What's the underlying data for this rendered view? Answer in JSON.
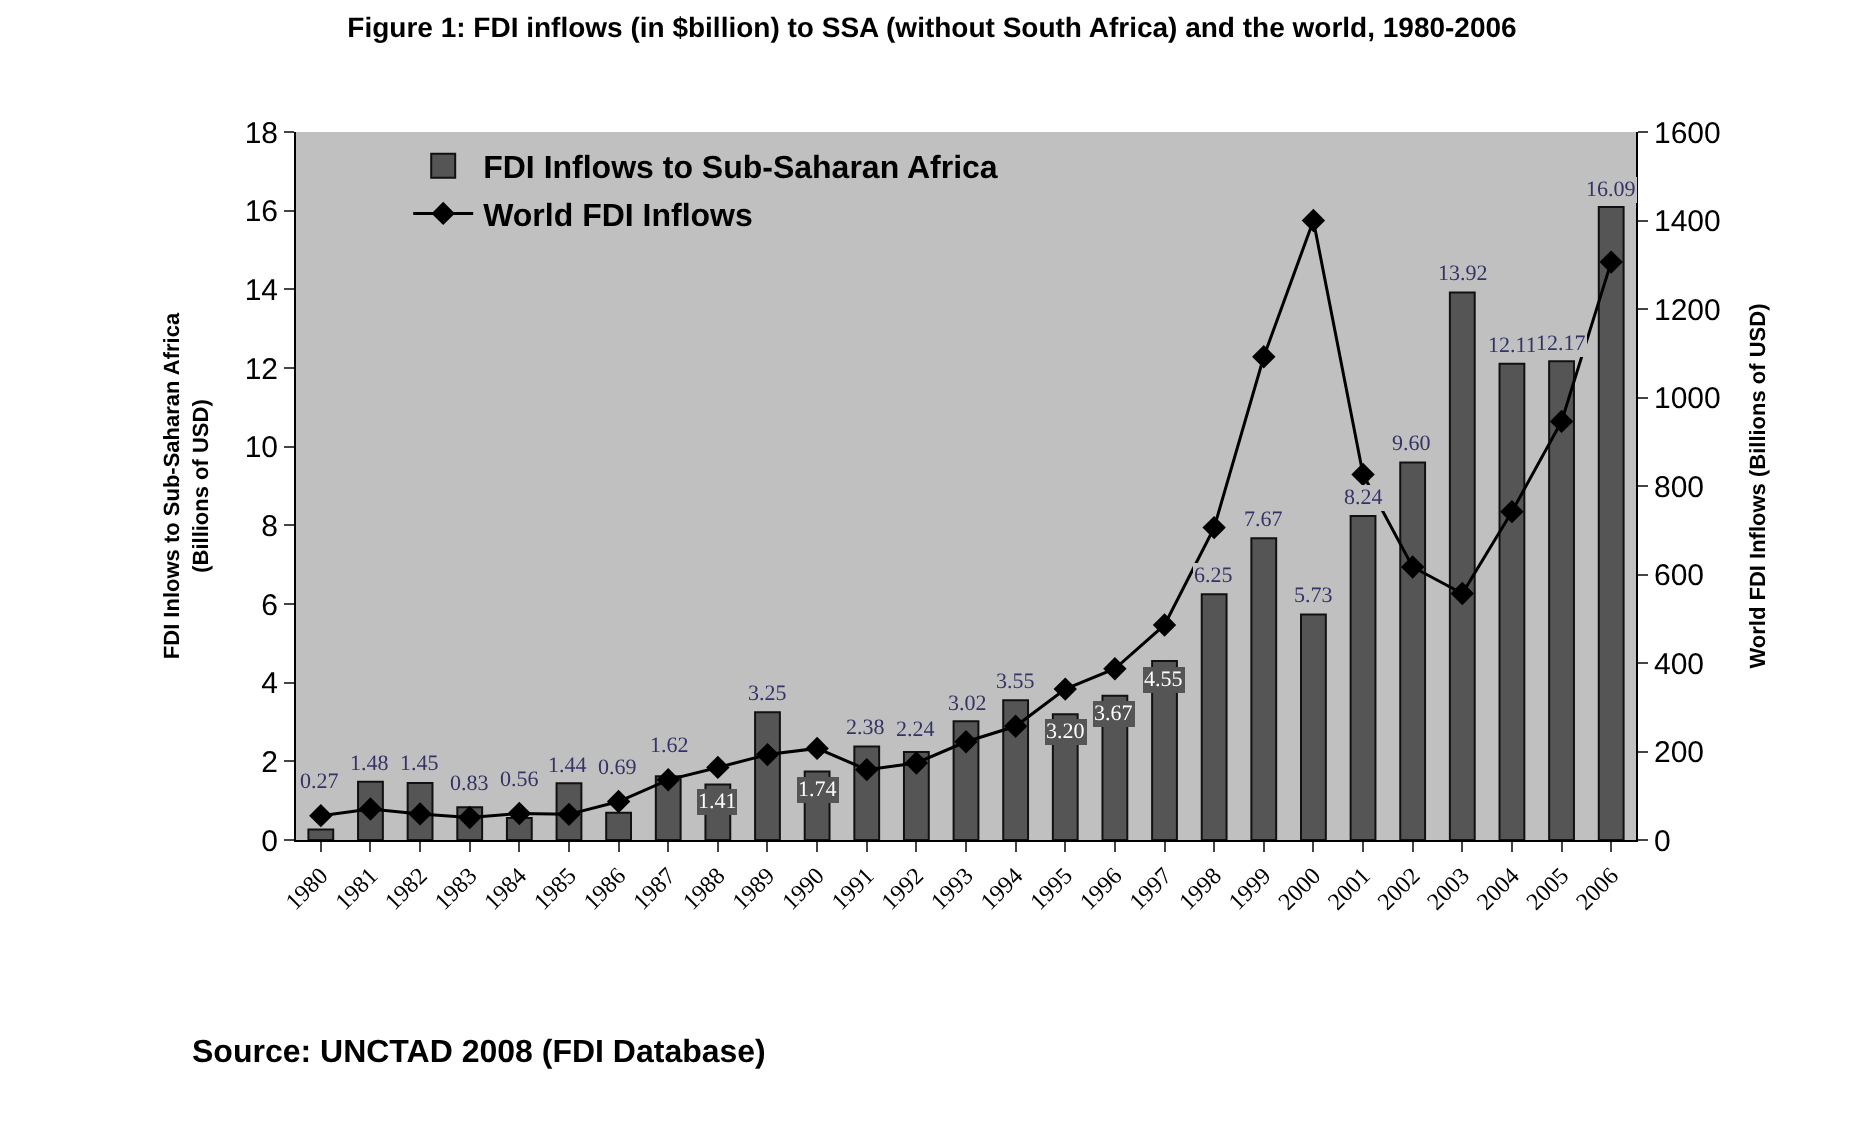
{
  "chart_data": {
    "type": "bar",
    "title": "Figure 1: FDI inflows (in $billion) to SSA (without South Africa) and the world, 1980-2006",
    "xlabel": null,
    "ylabel": "FDI Inlows to Sub-Saharan Africa\n(Billions of USD)",
    "y2label": "World FDI Inflows (Billions of USD)",
    "categories": [
      "1980",
      "1981",
      "1982",
      "1983",
      "1984",
      "1985",
      "1986",
      "1987",
      "1988",
      "1989",
      "1990",
      "1991",
      "1992",
      "1993",
      "1994",
      "1995",
      "1996",
      "1997",
      "1998",
      "1999",
      "2000",
      "2001",
      "2002",
      "2003",
      "2004",
      "2005",
      "2006"
    ],
    "series": [
      {
        "name": "FDI Inflows to Sub-Saharan Africa",
        "color": "#555555",
        "values": [
          0.27,
          1.48,
          1.45,
          0.83,
          0.56,
          1.44,
          0.69,
          1.62,
          1.41,
          3.25,
          1.74,
          2.38,
          2.24,
          3.02,
          3.55,
          3.2,
          3.67,
          4.55,
          6.25,
          7.67,
          5.73,
          8.24,
          9.6,
          13.92,
          12.11,
          12.17,
          16.09
        ],
        "value_labels": [
          "0.27",
          "1.48",
          "1.45",
          "0.83",
          "0.56",
          "1.44",
          "0.69",
          "1.62",
          "1.41",
          "3.25",
          "1.74",
          "2.38",
          "2.24",
          "3.02",
          "3.55",
          "3.20",
          "3.67",
          "4.55",
          "6.25",
          "7.67",
          "5.73",
          "8.24",
          "9.60",
          "13.92",
          "12.11",
          "12.17",
          "16.09"
        ]
      },
      {
        "name": "World FDI Inflows",
        "type": "line",
        "axis": "y2",
        "color": "#000000",
        "marker": "diamond",
        "line_style": "solid",
        "values": [
          55,
          70,
          59,
          51,
          60,
          58,
          87,
          136,
          164,
          193,
          207,
          159,
          174,
          222,
          257,
          341,
          387,
          486,
          706,
          1092,
          1400,
          826,
          617,
          557,
          742,
          946,
          1306
        ]
      }
    ],
    "ylim": [
      0,
      18
    ],
    "yticks": [
      0,
      2,
      4,
      6,
      8,
      10,
      12,
      14,
      16,
      18
    ],
    "y2lim": [
      0,
      1600
    ],
    "y2ticks": [
      0,
      200,
      400,
      600,
      800,
      1000,
      1200,
      1400,
      1600
    ],
    "grid": false,
    "legend": "top left",
    "annotations": [
      "Source: UNCTAD 2008 (FDI Database)"
    ]
  }
}
